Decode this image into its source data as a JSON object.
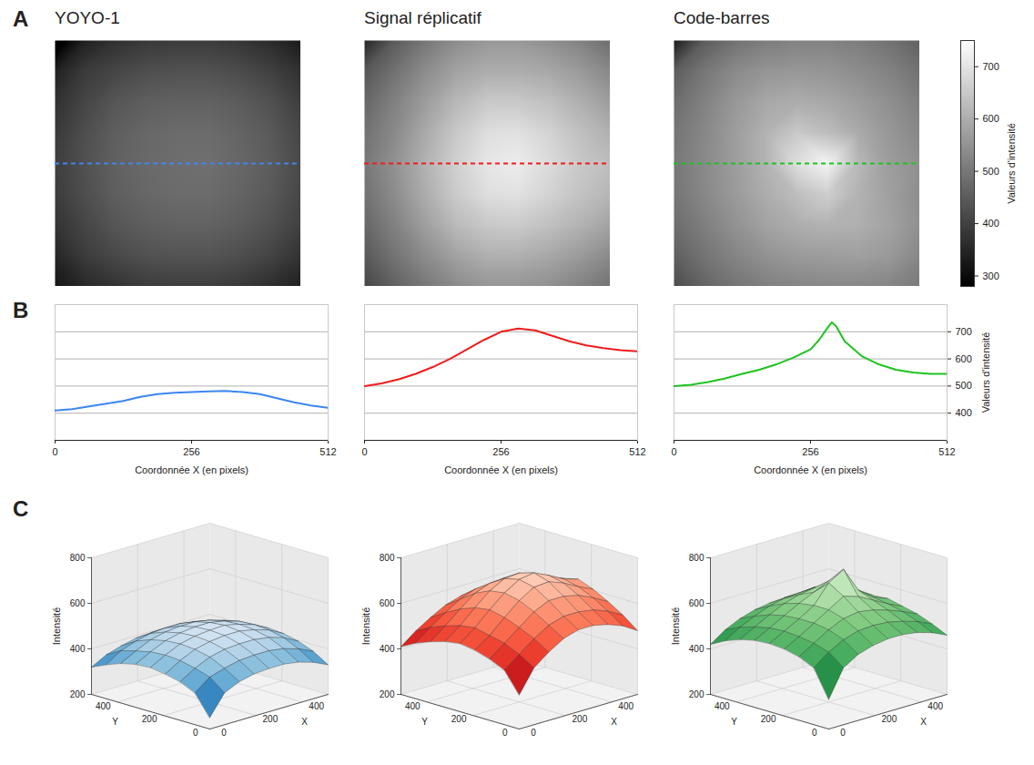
{
  "chart_data": {
    "type": "multi-panel",
    "panel_labels": [
      "A",
      "B",
      "C"
    ],
    "grid_x": [
      0,
      64,
      128,
      192,
      256,
      320,
      384,
      448,
      512
    ],
    "grid_y": [
      0,
      64,
      128,
      192,
      256,
      320,
      384,
      448,
      512
    ],
    "colorbar": {
      "label": "Valeurs d'intensité",
      "range": [
        280,
        750
      ],
      "ticks": [
        300,
        400,
        500,
        600,
        700
      ]
    },
    "profile_marker": {
      "y": 256,
      "line_style": "dashed"
    },
    "profile_axes": {
      "xlabel": "Coordonnée X (en pixels)",
      "xlim": [
        0,
        512
      ],
      "xticks": [
        0,
        256,
        512
      ],
      "ylabel": "Valeurs d'intensité",
      "ylim": [
        300,
        800
      ],
      "yticks": [
        400,
        500,
        600,
        700
      ],
      "grid": true
    },
    "surface_axes": {
      "xlabel": "X",
      "ylabel": "Y",
      "zlabel": "Intensité",
      "xlim": [
        0,
        512
      ],
      "ylim": [
        0,
        512
      ],
      "zlim": [
        200,
        800
      ],
      "xticks": [
        0,
        200,
        400
      ],
      "yticks": [
        0,
        200,
        400
      ],
      "zticks": [
        200,
        400,
        600,
        800
      ]
    },
    "series": [
      {
        "name": "YOYO-1",
        "color": "#3d86f0",
        "surface": {
          "color": "Blues"
        },
        "cells": [
          [
            250,
            340,
            370,
            385,
            390,
            390,
            380,
            360,
            330
          ],
          [
            340,
            390,
            410,
            425,
            430,
            430,
            420,
            400,
            370
          ],
          [
            370,
            410,
            440,
            455,
            460,
            460,
            450,
            430,
            395
          ],
          [
            385,
            425,
            455,
            470,
            478,
            478,
            465,
            445,
            410
          ],
          [
            395,
            430,
            460,
            475,
            482,
            485,
            470,
            450,
            415
          ],
          [
            390,
            425,
            455,
            470,
            478,
            478,
            465,
            445,
            410
          ],
          [
            375,
            410,
            440,
            455,
            462,
            462,
            450,
            430,
            398
          ],
          [
            350,
            392,
            415,
            430,
            435,
            435,
            425,
            405,
            375
          ],
          [
            320,
            355,
            375,
            390,
            395,
            395,
            385,
            365,
            340
          ]
        ],
        "profile": {
          "tick_labels": "x",
          "x": [
            0,
            32,
            64,
            96,
            128,
            160,
            192,
            224,
            256,
            288,
            320,
            352,
            384,
            416,
            448,
            480,
            512
          ],
          "values": [
            410,
            415,
            425,
            435,
            445,
            460,
            470,
            475,
            478,
            480,
            482,
            478,
            470,
            455,
            440,
            428,
            420
          ]
        }
      },
      {
        "name": "Signal réplicatif",
        "color": "#ee1c1c",
        "surface": {
          "color": "Reds"
        },
        "cells": [
          [
            350,
            450,
            500,
            540,
            560,
            560,
            545,
            520,
            480
          ],
          [
            440,
            490,
            540,
            580,
            600,
            600,
            590,
            565,
            530
          ],
          [
            470,
            520,
            570,
            620,
            650,
            650,
            635,
            605,
            570
          ],
          [
            490,
            535,
            595,
            650,
            690,
            695,
            670,
            635,
            605
          ],
          [
            500,
            550,
            610,
            665,
            705,
            715,
            685,
            650,
            630
          ],
          [
            490,
            540,
            600,
            655,
            690,
            695,
            670,
            640,
            615
          ],
          [
            470,
            520,
            575,
            625,
            650,
            655,
            635,
            610,
            580
          ],
          [
            445,
            495,
            540,
            580,
            605,
            605,
            590,
            565,
            535
          ],
          [
            410,
            460,
            500,
            535,
            555,
            555,
            545,
            520,
            490
          ]
        ],
        "profile": {
          "tick_labels": "x",
          "x": [
            0,
            32,
            64,
            96,
            128,
            160,
            192,
            224,
            256,
            288,
            320,
            352,
            384,
            416,
            448,
            480,
            512
          ],
          "values": [
            500,
            510,
            525,
            545,
            570,
            600,
            635,
            670,
            700,
            712,
            705,
            685,
            665,
            650,
            640,
            632,
            628
          ]
        }
      },
      {
        "name": "Code-barres",
        "color": "#1ec31e",
        "surface": {
          "color": "Greens"
        },
        "cells": [
          [
            330,
            450,
            490,
            510,
            520,
            520,
            510,
            490,
            460
          ],
          [
            450,
            500,
            535,
            555,
            560,
            555,
            540,
            520,
            490
          ],
          [
            480,
            520,
            560,
            590,
            600,
            590,
            570,
            545,
            515
          ],
          [
            495,
            530,
            570,
            610,
            650,
            630,
            595,
            560,
            530
          ],
          [
            500,
            535,
            570,
            610,
            690,
            730,
            620,
            570,
            545
          ],
          [
            495,
            530,
            565,
            600,
            630,
            660,
            610,
            575,
            540
          ],
          [
            480,
            515,
            550,
            580,
            600,
            610,
            605,
            580,
            545
          ],
          [
            455,
            495,
            525,
            550,
            565,
            570,
            575,
            565,
            530
          ],
          [
            420,
            465,
            495,
            515,
            525,
            530,
            530,
            525,
            505
          ]
        ],
        "profile": {
          "x": [
            0,
            32,
            64,
            96,
            128,
            160,
            192,
            224,
            256,
            272,
            288,
            296,
            304,
            320,
            352,
            384,
            416,
            448,
            480,
            512
          ],
          "values": [
            500,
            505,
            515,
            528,
            545,
            560,
            580,
            605,
            635,
            670,
            715,
            735,
            720,
            665,
            610,
            580,
            560,
            550,
            545,
            545
          ]
        }
      }
    ]
  }
}
